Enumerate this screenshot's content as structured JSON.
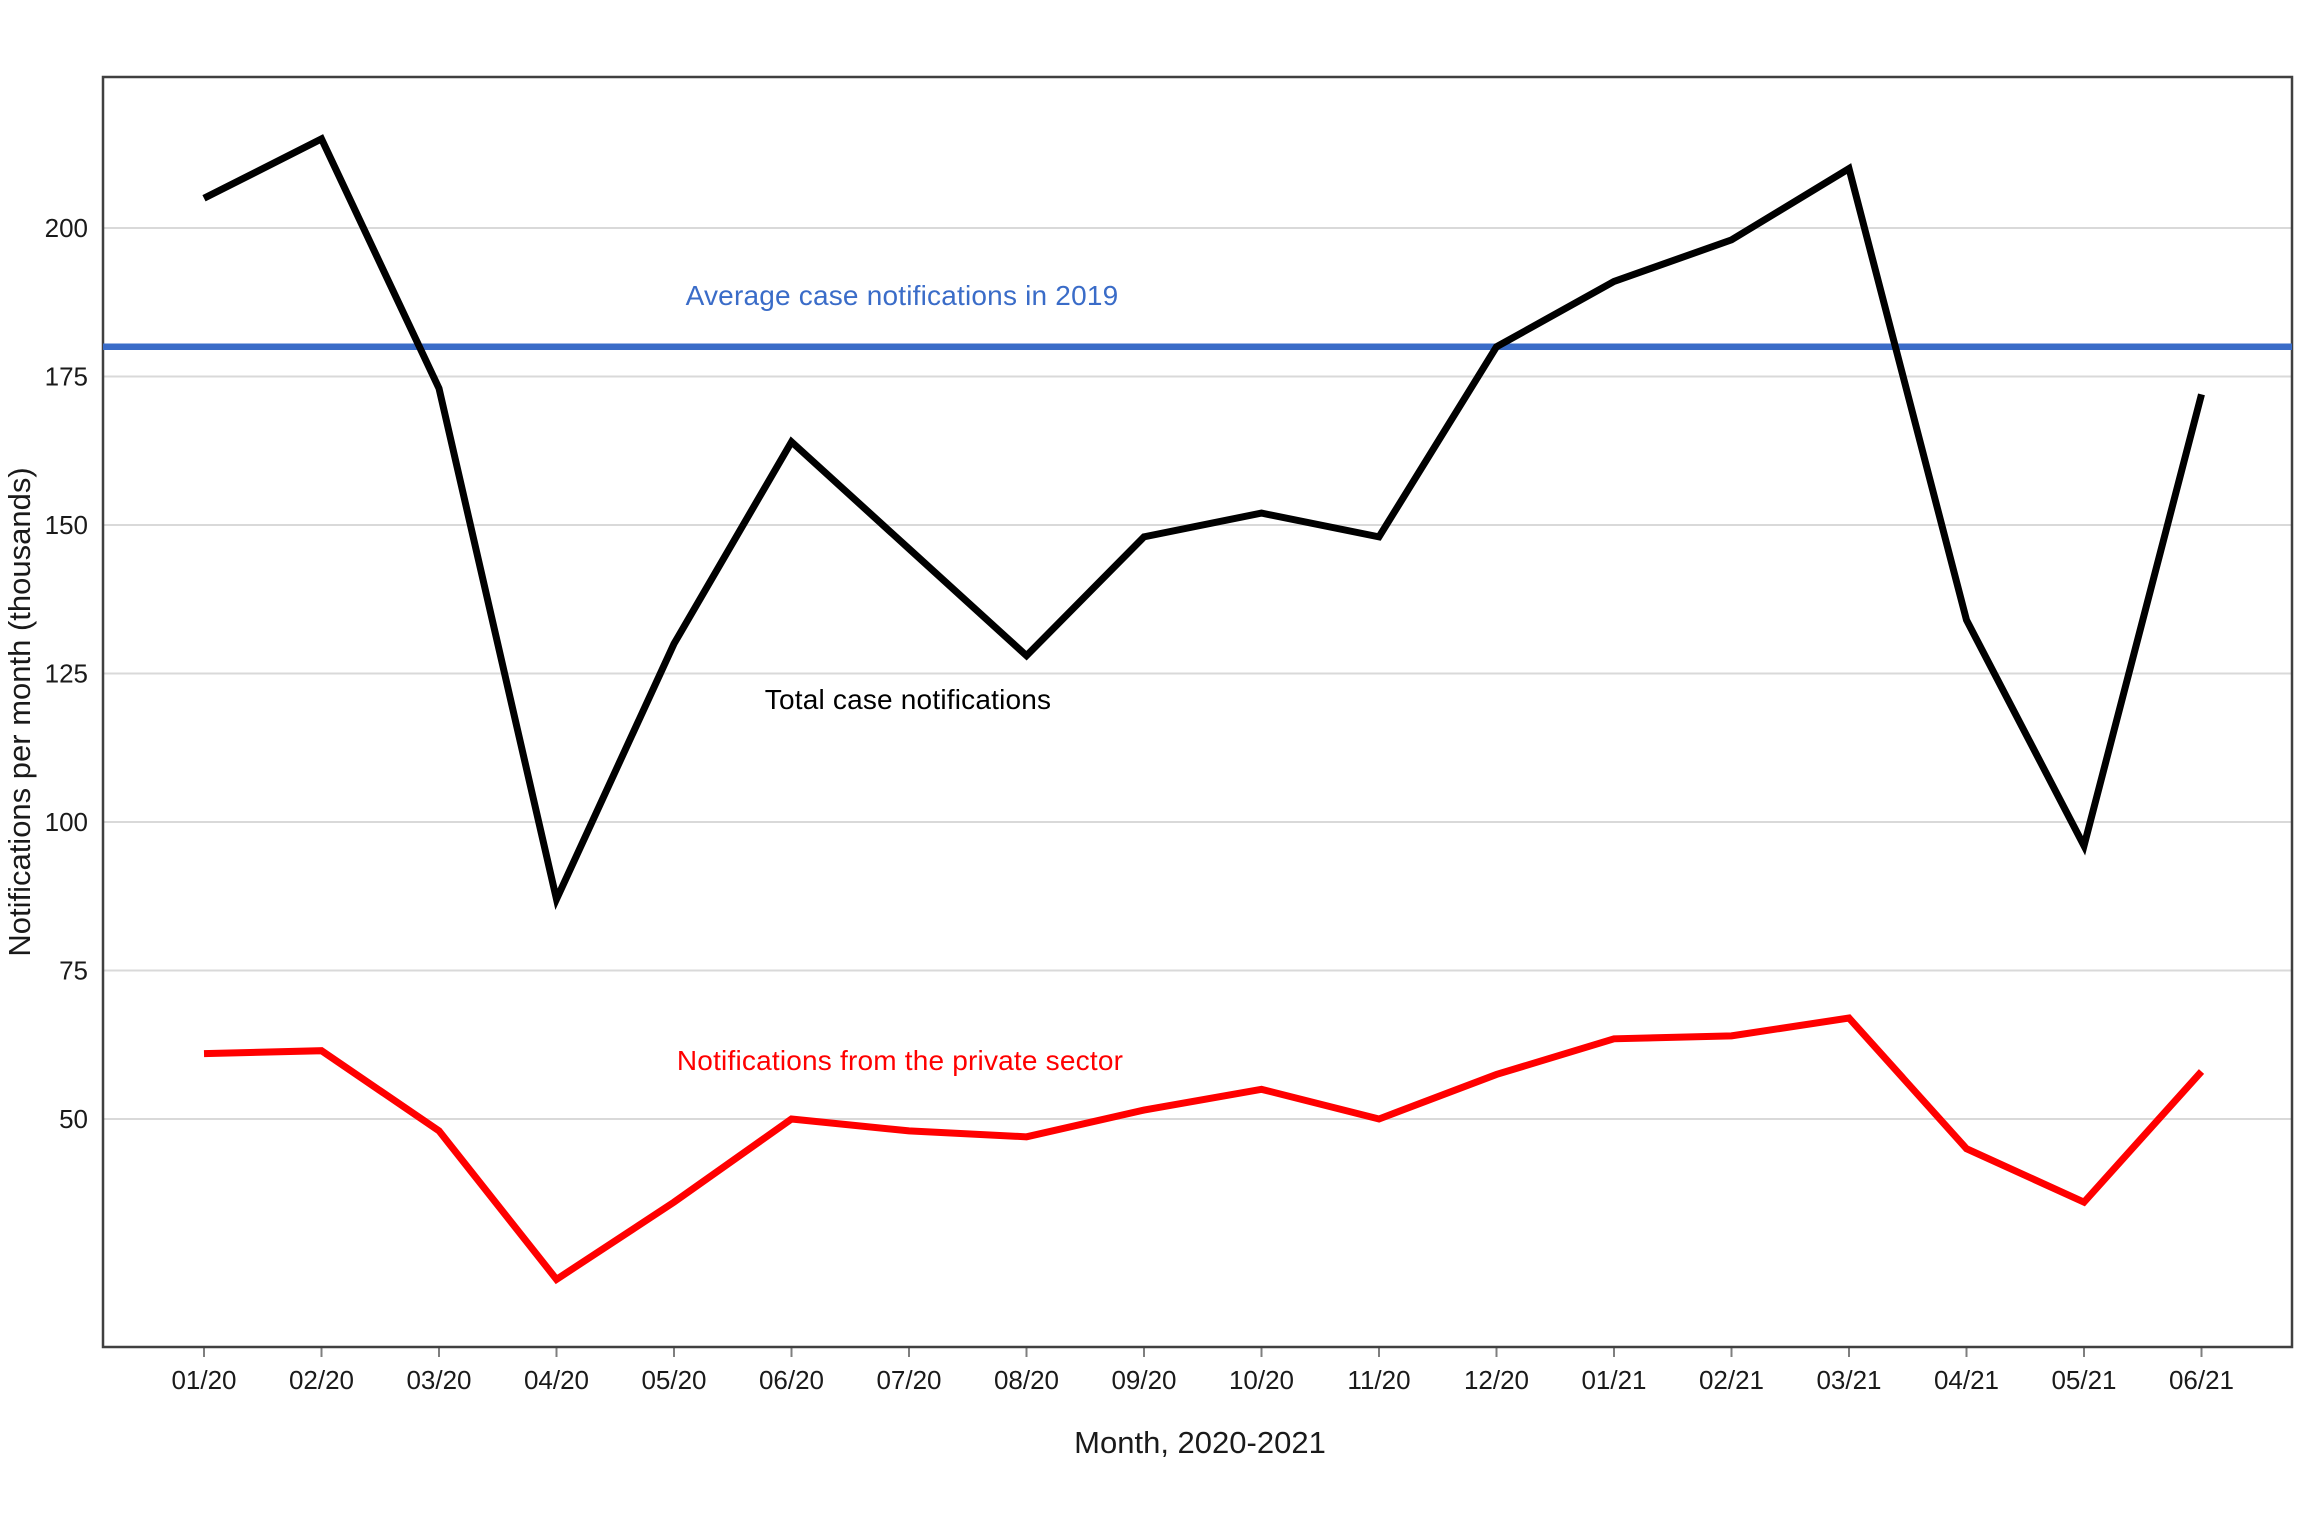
{
  "chart_data": {
    "type": "line",
    "title": "",
    "xlabel": "Month, 2020-2021",
    "ylabel": "Notifications per month (thousands)",
    "categories": [
      "01/20",
      "02/20",
      "03/20",
      "04/20",
      "05/20",
      "06/20",
      "07/20",
      "08/20",
      "09/20",
      "10/20",
      "11/20",
      "12/20",
      "01/21",
      "02/21",
      "03/21",
      "04/21",
      "05/21",
      "06/21"
    ],
    "y_ticks": [
      50,
      75,
      100,
      125,
      150,
      175,
      200
    ],
    "ylim": [
      12,
      225
    ],
    "grid": "horizontal-only",
    "legend_position": "inline-annotations",
    "series": [
      {
        "name": "Total case notifications",
        "color": "#000000",
        "values": [
          205,
          215,
          173,
          87,
          130,
          164,
          146,
          128,
          148,
          152,
          148,
          180,
          191,
          198,
          210,
          134,
          96,
          172
        ]
      },
      {
        "name": "Notifications from the private sector",
        "color": "#FF0000",
        "values": [
          61,
          61.5,
          48,
          23,
          36,
          50,
          48,
          47,
          51.5,
          55,
          50,
          57.5,
          63.5,
          64,
          67,
          45,
          36,
          58
        ]
      }
    ],
    "reference_line": {
      "label": "Average case notifications in 2019",
      "value": 180,
      "color": "#3A6CC8"
    },
    "colors": {
      "gridline": "#D9D9D9",
      "axis_border": "#404040",
      "tick_mark": "#7F7F7F",
      "tick_label": "#1A1A1A"
    }
  }
}
